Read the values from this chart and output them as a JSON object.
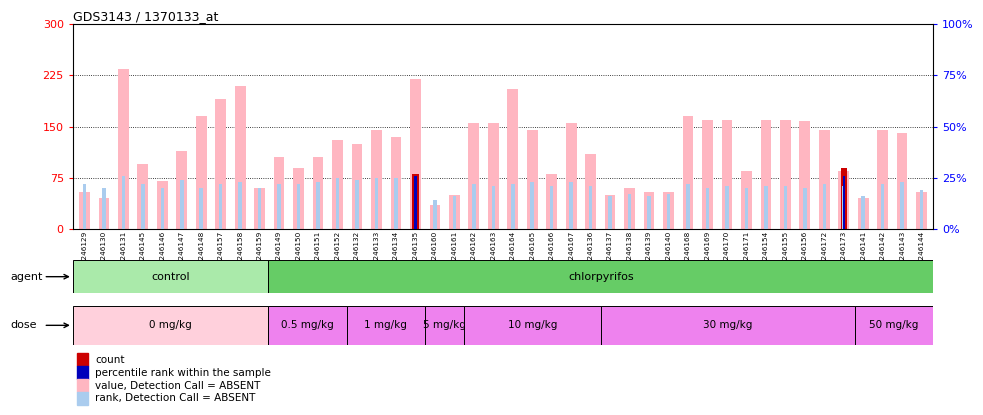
{
  "title": "GDS3143 / 1370133_at",
  "samples": [
    "GSM246129",
    "GSM246130",
    "GSM246131",
    "GSM246145",
    "GSM246146",
    "GSM246147",
    "GSM246148",
    "GSM246157",
    "GSM246158",
    "GSM246159",
    "GSM246149",
    "GSM246150",
    "GSM246151",
    "GSM246152",
    "GSM246132",
    "GSM246133",
    "GSM246134",
    "GSM246135",
    "GSM246160",
    "GSM246161",
    "GSM246162",
    "GSM246163",
    "GSM246164",
    "GSM246165",
    "GSM246166",
    "GSM246167",
    "GSM246136",
    "GSM246137",
    "GSM246138",
    "GSM246139",
    "GSM246140",
    "GSM246168",
    "GSM246169",
    "GSM246170",
    "GSM246171",
    "GSM246154",
    "GSM246155",
    "GSM246156",
    "GSM246172",
    "GSM246173",
    "GSM246141",
    "GSM246142",
    "GSM246143",
    "GSM246144"
  ],
  "value_bars": [
    55,
    45,
    235,
    95,
    70,
    115,
    165,
    190,
    210,
    60,
    105,
    90,
    105,
    130,
    125,
    145,
    135,
    220,
    35,
    50,
    155,
    155,
    205,
    145,
    80,
    155,
    110,
    50,
    60,
    55,
    55,
    165,
    160,
    160,
    85,
    160,
    160,
    158,
    145,
    85,
    45,
    145,
    140,
    55
  ],
  "rank_bars": [
    22,
    20,
    26,
    22,
    20,
    24,
    20,
    22,
    23,
    20,
    22,
    22,
    23,
    25,
    24,
    25,
    25,
    19,
    14,
    16,
    22,
    21,
    22,
    23,
    21,
    23,
    21,
    16,
    17,
    16,
    17,
    22,
    20,
    21,
    20,
    21,
    21,
    20,
    22,
    21,
    16,
    22,
    23,
    19
  ],
  "count_bars": [
    0,
    0,
    0,
    0,
    0,
    0,
    0,
    0,
    0,
    0,
    0,
    0,
    0,
    0,
    0,
    0,
    0,
    80,
    0,
    0,
    0,
    0,
    0,
    0,
    0,
    0,
    0,
    0,
    0,
    0,
    0,
    0,
    0,
    0,
    0,
    0,
    0,
    0,
    0,
    90,
    0,
    0,
    0,
    0
  ],
  "percentile_bars": [
    0,
    0,
    0,
    0,
    0,
    0,
    0,
    0,
    0,
    0,
    0,
    0,
    0,
    0,
    0,
    0,
    0,
    26,
    0,
    0,
    0,
    0,
    0,
    0,
    0,
    0,
    0,
    0,
    0,
    0,
    0,
    0,
    0,
    0,
    0,
    0,
    0,
    0,
    0,
    26,
    0,
    0,
    0,
    0
  ],
  "ylim_left": [
    0,
    300
  ],
  "ylim_right": [
    0,
    100
  ],
  "yticks_left": [
    0,
    75,
    150,
    225,
    300
  ],
  "yticks_right": [
    0,
    25,
    50,
    75,
    100
  ],
  "agent_groups": [
    {
      "label": "control",
      "start": 0,
      "end": 10,
      "color": "#AAEAAA"
    },
    {
      "label": "chlorpyrifos",
      "start": 10,
      "end": 44,
      "color": "#66CC66"
    }
  ],
  "dose_segments": [
    {
      "label": "0 mg/kg",
      "start": 0,
      "end": 10,
      "color": "#FFD0DC"
    },
    {
      "label": "0.5 mg/kg",
      "start": 10,
      "end": 14,
      "color": "#EE82EE"
    },
    {
      "label": "1 mg/kg",
      "start": 14,
      "end": 18,
      "color": "#EE82EE"
    },
    {
      "label": "5 mg/kg",
      "start": 18,
      "end": 20,
      "color": "#EE82EE"
    },
    {
      "label": "10 mg/kg",
      "start": 20,
      "end": 27,
      "color": "#EE82EE"
    },
    {
      "label": "30 mg/kg",
      "start": 27,
      "end": 40,
      "color": "#EE82EE"
    },
    {
      "label": "50 mg/kg",
      "start": 40,
      "end": 44,
      "color": "#EE82EE"
    }
  ],
  "color_value": "#FFB6C1",
  "color_rank": "#AACCEE",
  "color_count": "#CC0000",
  "color_percentile": "#0000BB",
  "legend_items": [
    {
      "label": "count",
      "color": "#CC0000"
    },
    {
      "label": "percentile rank within the sample",
      "color": "#0000BB"
    },
    {
      "label": "value, Detection Call = ABSENT",
      "color": "#FFB6C1"
    },
    {
      "label": "rank, Detection Call = ABSENT",
      "color": "#AACCEE"
    }
  ]
}
